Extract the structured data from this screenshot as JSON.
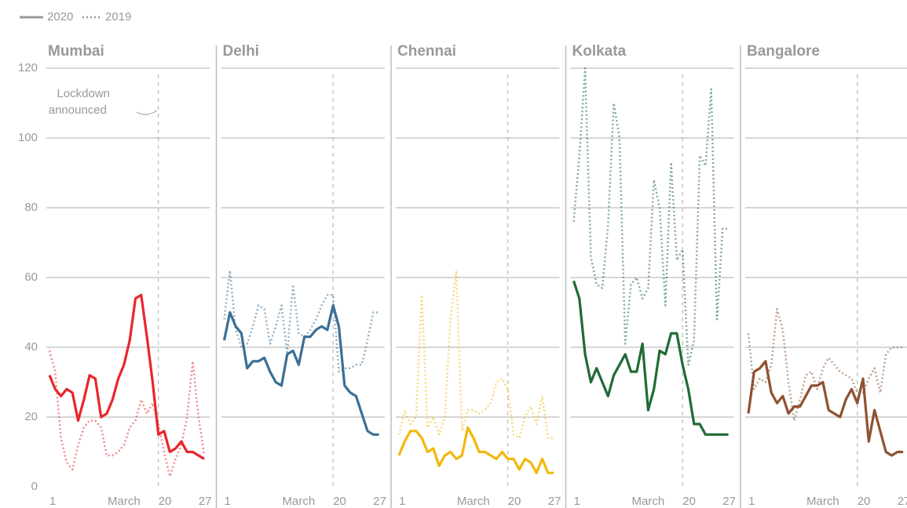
{
  "chart_data": [
    {
      "type": "line",
      "title": "Mumbai",
      "color": "#e8262b",
      "annotation": [
        "Lockdown",
        "announced"
      ],
      "vline": 20,
      "x": [
        1,
        2,
        3,
        4,
        5,
        6,
        7,
        8,
        9,
        10,
        11,
        12,
        13,
        14,
        15,
        16,
        17,
        18,
        19,
        20,
        21,
        22,
        23,
        24,
        25,
        26,
        27,
        28
      ],
      "xlim": [
        1,
        29
      ],
      "xticks": [
        1,
        {
          "value": 14,
          "label": "March"
        },
        20,
        27
      ],
      "ylim": [
        0,
        120
      ],
      "yticks": [
        0,
        20,
        40,
        60,
        80,
        100,
        120
      ],
      "series": [
        {
          "name": "2020",
          "dash": "solid",
          "values": [
            32,
            28,
            26,
            28,
            27,
            19,
            25,
            32,
            31,
            20,
            21,
            25,
            31,
            35,
            42,
            54,
            55,
            43,
            30,
            15,
            16,
            10,
            11,
            13,
            10,
            10,
            9,
            8
          ]
        },
        {
          "name": "2019",
          "dash": "dotted",
          "values": [
            39,
            33,
            14,
            7,
            5,
            12,
            17,
            19,
            19,
            17,
            9,
            9,
            10,
            12,
            17,
            19,
            25,
            21,
            24,
            18,
            10,
            3,
            8,
            12,
            20,
            36,
            20,
            9
          ]
        }
      ]
    },
    {
      "type": "line",
      "title": "Delhi",
      "color": "#3a6f96",
      "vline": 20,
      "x": [
        1,
        2,
        3,
        4,
        5,
        6,
        7,
        8,
        9,
        10,
        11,
        12,
        13,
        14,
        15,
        16,
        17,
        18,
        19,
        20,
        21,
        22,
        23,
        24,
        25,
        26,
        27,
        28
      ],
      "xlim": [
        1,
        29
      ],
      "xticks": [
        1,
        {
          "value": 14,
          "label": "March"
        },
        20,
        27
      ],
      "ylim": [
        0,
        120
      ],
      "yticks": [
        0,
        20,
        40,
        60,
        80,
        100,
        120
      ],
      "series": [
        {
          "name": "2020",
          "dash": "solid",
          "values": [
            42,
            50,
            46,
            44,
            34,
            36,
            36,
            37,
            33,
            30,
            29,
            38,
            39,
            35,
            43,
            43,
            45,
            46,
            45,
            52,
            46,
            29,
            27,
            26,
            21,
            16,
            15,
            15
          ]
        },
        {
          "name": "2019",
          "dash": "dotted",
          "values": [
            48,
            62,
            45,
            40,
            41,
            46,
            52,
            51,
            41,
            46,
            52,
            38,
            58,
            44,
            43,
            45,
            48,
            52,
            55,
            55,
            33,
            34,
            34,
            35,
            35,
            42,
            50,
            50
          ]
        }
      ]
    },
    {
      "type": "line",
      "title": "Chennai",
      "color": "#f2b80c",
      "vline": 20,
      "x": [
        1,
        2,
        3,
        4,
        5,
        6,
        7,
        8,
        9,
        10,
        11,
        12,
        13,
        14,
        15,
        16,
        17,
        18,
        19,
        20,
        21,
        22,
        23,
        24,
        25,
        26,
        27,
        28
      ],
      "xlim": [
        1,
        29
      ],
      "xticks": [
        1,
        {
          "value": 14,
          "label": "March"
        },
        20,
        27
      ],
      "ylim": [
        0,
        120
      ],
      "yticks": [
        0,
        20,
        40,
        60,
        80,
        100,
        120
      ],
      "series": [
        {
          "name": "2020",
          "dash": "solid",
          "values": [
            9,
            13,
            16,
            16,
            14,
            10,
            11,
            6,
            9,
            10,
            8,
            9,
            17,
            14,
            10,
            10,
            9,
            8,
            10,
            8,
            8,
            5,
            8,
            7,
            4,
            8,
            4,
            4
          ]
        },
        {
          "name": "2019",
          "dash": "dotted",
          "values": [
            15,
            22,
            18,
            20,
            55,
            17,
            20,
            15,
            20,
            48,
            62,
            16,
            22,
            22,
            21,
            22,
            24,
            30,
            31,
            28,
            15,
            14,
            20,
            23,
            18,
            26,
            14,
            14
          ]
        }
      ]
    },
    {
      "type": "line",
      "title": "Kolkata",
      "color": "#1f6b35",
      "vline": 20,
      "x": [
        1,
        2,
        3,
        4,
        5,
        6,
        7,
        8,
        9,
        10,
        11,
        12,
        13,
        14,
        15,
        16,
        17,
        18,
        19,
        20,
        21,
        22,
        23,
        24,
        25,
        26,
        27,
        28
      ],
      "xlim": [
        1,
        29
      ],
      "xticks": [
        1,
        {
          "value": 14,
          "label": "March"
        },
        20,
        27
      ],
      "ylim": [
        0,
        120
      ],
      "yticks": [
        0,
        20,
        40,
        60,
        80,
        100,
        120
      ],
      "series": [
        {
          "name": "2020",
          "dash": "solid",
          "values": [
            59,
            54,
            38,
            30,
            34,
            30,
            26,
            32,
            35,
            38,
            33,
            33,
            41,
            22,
            28,
            39,
            38,
            44,
            44,
            35,
            28,
            18,
            18,
            15,
            15,
            15,
            15,
            15
          ]
        },
        {
          "name": "2019",
          "dash": "dotted",
          "values": [
            76,
            95,
            120,
            66,
            58,
            57,
            75,
            110,
            100,
            41,
            58,
            60,
            54,
            57,
            88,
            80,
            52,
            93,
            65,
            68,
            35,
            42,
            95,
            92,
            114,
            48,
            74,
            74
          ]
        }
      ]
    },
    {
      "type": "line",
      "title": "Bangalore",
      "color": "#8e5230",
      "vline": 20,
      "x": [
        1,
        2,
        3,
        4,
        5,
        6,
        7,
        8,
        9,
        10,
        11,
        12,
        13,
        14,
        15,
        16,
        17,
        18,
        19,
        20,
        21,
        22,
        23,
        24,
        25,
        26,
        27,
        28
      ],
      "xlim": [
        1,
        29
      ],
      "xticks": [
        1,
        {
          "value": 14,
          "label": "March"
        },
        20,
        27
      ],
      "ylim": [
        0,
        120
      ],
      "yticks": [
        0,
        20,
        40,
        60,
        80,
        100,
        120
      ],
      "series": [
        {
          "name": "2020",
          "dash": "solid",
          "values": [
            21,
            33,
            34,
            36,
            27,
            24,
            26,
            21,
            23,
            23,
            26,
            29,
            29,
            30,
            22,
            21,
            20,
            25,
            28,
            24,
            31,
            13,
            22,
            16,
            10,
            9,
            10,
            10
          ]
        },
        {
          "name": "2019",
          "dash": "dotted",
          "values": [
            44,
            28,
            31,
            30,
            35,
            51,
            45,
            30,
            19,
            25,
            32,
            33,
            28,
            34,
            37,
            35,
            33,
            32,
            31,
            27,
            27,
            31,
            34,
            27,
            38,
            40,
            40,
            40
          ]
        }
      ]
    }
  ]
}
